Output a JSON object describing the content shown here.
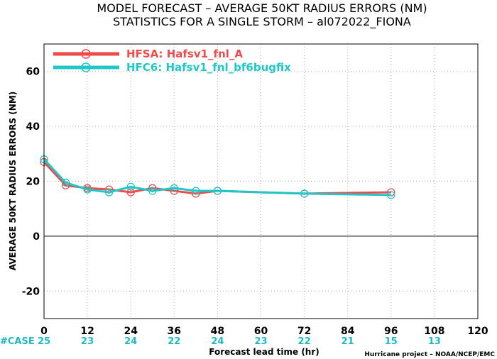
{
  "chart_data": {
    "type": "line",
    "title": "MODEL FORECAST – AVERAGE 50KT RADIUS ERRORS (NM)",
    "subtitle": "STATISTICS FOR A SINGLE STORM – al072022_FIONA",
    "xlabel": "Forecast lead time (hr)",
    "ylabel": "AVERAGE 50KT RADIUS ERRORS (NM)",
    "xlim": [
      0,
      120
    ],
    "ylim": [
      -30,
      70
    ],
    "xticks": [
      0,
      12,
      24,
      36,
      48,
      60,
      72,
      84,
      96,
      108,
      120
    ],
    "yticks": [
      -20,
      0,
      20,
      40,
      60
    ],
    "grid": true,
    "legend_position": "top-left",
    "x": [
      0,
      6,
      12,
      18,
      24,
      30,
      36,
      42,
      48,
      72,
      96
    ],
    "series": [
      {
        "name": "HFSA: Hafsv1_fnl_A",
        "color": "#f04a4a",
        "values": [
          27,
          18.5,
          17.5,
          17,
          16,
          17.5,
          16.5,
          15.5,
          16.5,
          15.5,
          16
        ]
      },
      {
        "name": "HFC6: Hafsv1_fnl_bf6bugfix",
        "color": "#1fc8c8",
        "values": [
          28,
          19.5,
          17,
          16,
          18,
          16.5,
          17.5,
          16.5,
          16.5,
          15.5,
          15
        ]
      }
    ],
    "case_label": "#CASE",
    "cases": [
      {
        "x": 0,
        "n": "25"
      },
      {
        "x": 12,
        "n": "23"
      },
      {
        "x": 24,
        "n": "24"
      },
      {
        "x": 36,
        "n": "22"
      },
      {
        "x": 48,
        "n": "24"
      },
      {
        "x": 60,
        "n": "23"
      },
      {
        "x": 72,
        "n": "22"
      },
      {
        "x": 84,
        "n": "21"
      },
      {
        "x": 96,
        "n": "15"
      },
      {
        "x": 108,
        "n": "13"
      }
    ],
    "credit": "Hurricane project – NOAA/NCEP/EMC"
  }
}
